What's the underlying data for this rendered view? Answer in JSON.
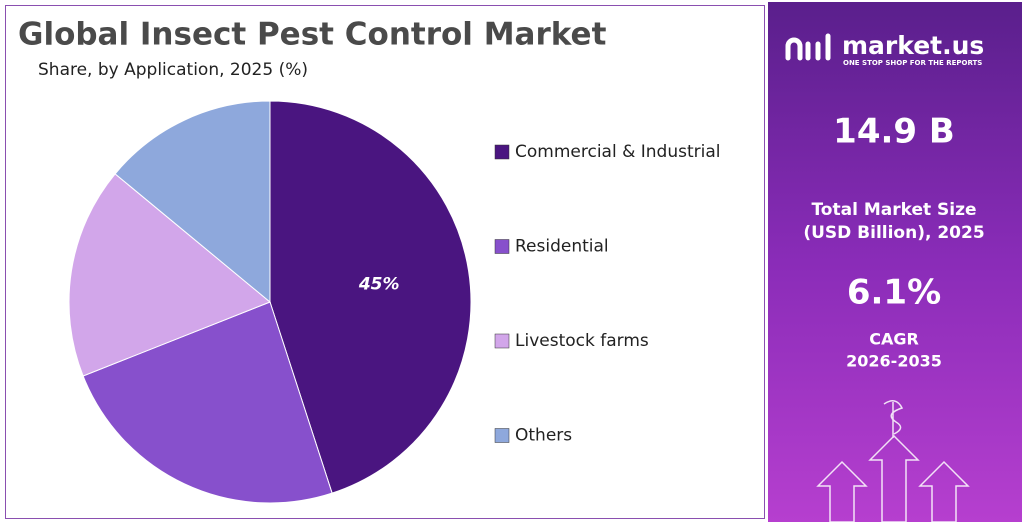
{
  "chart_data": {
    "type": "pie",
    "title": "Global Insect Pest Control Market",
    "subtitle": "Share, by Application, 2025 (%)",
    "categories": [
      "Commercial & Industrial",
      "Residential",
      "Livestock farms",
      "Others"
    ],
    "values": [
      45,
      24,
      17,
      14
    ],
    "value_labels": [
      "45%",
      null,
      null,
      null
    ],
    "colors": [
      "#4a1580",
      "#8750cc",
      "#d2a6ea",
      "#8ea8dc"
    ]
  },
  "panel": {
    "brand": "market.us",
    "tagline": "ONE STOP SHOP FOR THE REPORTS",
    "market_size": "14.9 B",
    "market_size_label_1": "Total Market Size",
    "market_size_label_2": "(USD Billion), 2025",
    "cagr": "6.1%",
    "cagr_label_1": "CAGR",
    "cagr_label_2": "2026-2035"
  }
}
